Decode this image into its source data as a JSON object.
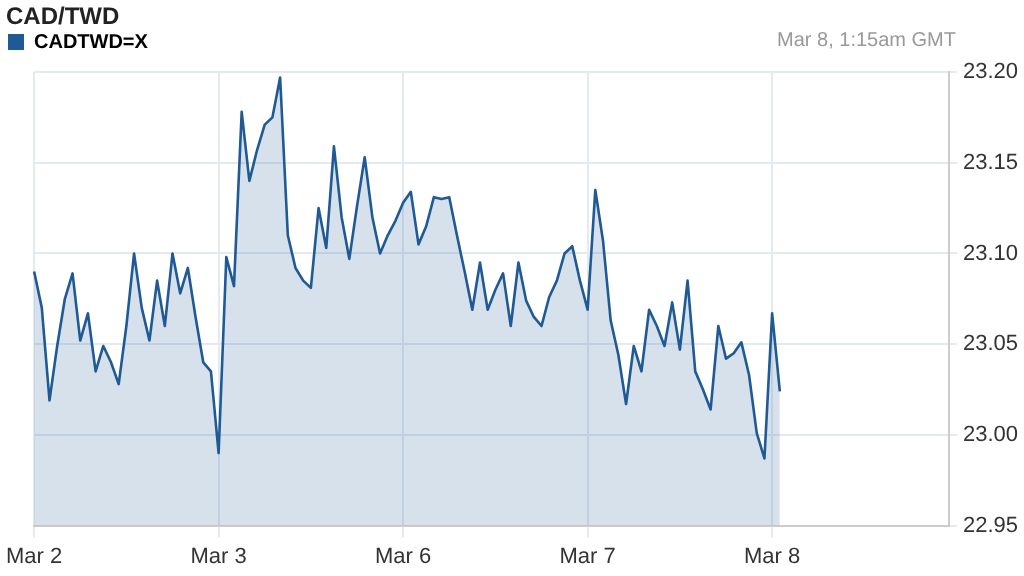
{
  "chart_data": {
    "type": "area",
    "title": "CAD/TWD",
    "subtitle": "Mar 8, 1:15am GMT",
    "categories": [
      "Mar 2",
      null,
      null,
      null,
      null,
      null,
      null,
      null,
      null,
      null,
      null,
      null,
      null,
      null,
      null,
      null,
      null,
      null,
      null,
      null,
      null,
      null,
      null,
      null,
      "Mar 3",
      null,
      null,
      null,
      null,
      null,
      null,
      null,
      null,
      null,
      null,
      null,
      null,
      null,
      null,
      null,
      null,
      null,
      null,
      null,
      null,
      null,
      null,
      null,
      "Mar 6",
      null,
      null,
      null,
      null,
      null,
      null,
      null,
      null,
      null,
      null,
      null,
      null,
      null,
      null,
      null,
      null,
      null,
      null,
      null,
      null,
      null,
      null,
      null,
      "Mar 7",
      null,
      null,
      null,
      null,
      null,
      null,
      null,
      null,
      null,
      null,
      null,
      null,
      null,
      null,
      null,
      null,
      null,
      null,
      null,
      null,
      null,
      null,
      null,
      "Mar 8",
      null,
      null,
      null,
      null,
      null,
      null,
      null,
      null,
      null,
      null,
      null,
      null,
      null,
      null,
      null,
      null,
      null,
      null,
      null,
      null,
      null,
      null,
      null
    ],
    "ylim": [
      22.95,
      23.2
    ],
    "yticks": [
      22.95,
      {
        "value": 23.0,
        "label": "23.00"
      },
      23.05,
      {
        "value": 23.1,
        "label": "23.10"
      },
      23.15,
      {
        "value": 23.2,
        "label": "23.20"
      }
    ],
    "grid": true,
    "legend": "top left",
    "marker": "none",
    "series": [
      {
        "name": "CADTWD=X",
        "color": "#1f5a94",
        "values": [
          23.09,
          23.07,
          23.019,
          23.049,
          23.075,
          23.089,
          23.052,
          23.067,
          23.035,
          23.049,
          23.04,
          23.028,
          23.06,
          23.1,
          23.07,
          23.052,
          23.085,
          23.06,
          23.1,
          23.078,
          23.092,
          23.065,
          23.04,
          23.035,
          22.99,
          23.098,
          23.082,
          23.178,
          23.14,
          23.157,
          23.171,
          23.175,
          23.197,
          23.11,
          23.092,
          23.085,
          23.081,
          23.125,
          23.103,
          23.159,
          23.12,
          23.097,
          23.126,
          23.153,
          23.12,
          23.1,
          23.11,
          23.118,
          23.128,
          23.134,
          23.105,
          23.115,
          23.131,
          23.13,
          23.131,
          23.11,
          23.09,
          23.069,
          23.095,
          23.069,
          23.08,
          23.089,
          23.06,
          23.095,
          23.074,
          23.065,
          23.06,
          23.076,
          23.085,
          23.1,
          23.104,
          23.085,
          23.069,
          23.135,
          23.107,
          23.063,
          23.044,
          23.017,
          23.049,
          23.035,
          23.069,
          23.06,
          23.049,
          23.073,
          23.047,
          23.085,
          23.035,
          23.025,
          23.014,
          23.06,
          23.042,
          23.045,
          23.051,
          23.033,
          23.001,
          22.987,
          23.067,
          23.024,
          null,
          null,
          null,
          null,
          null,
          null,
          null,
          null,
          null,
          null,
          null,
          null,
          null,
          null,
          null,
          null,
          null,
          null,
          null,
          null,
          null,
          null
        ]
      }
    ]
  }
}
